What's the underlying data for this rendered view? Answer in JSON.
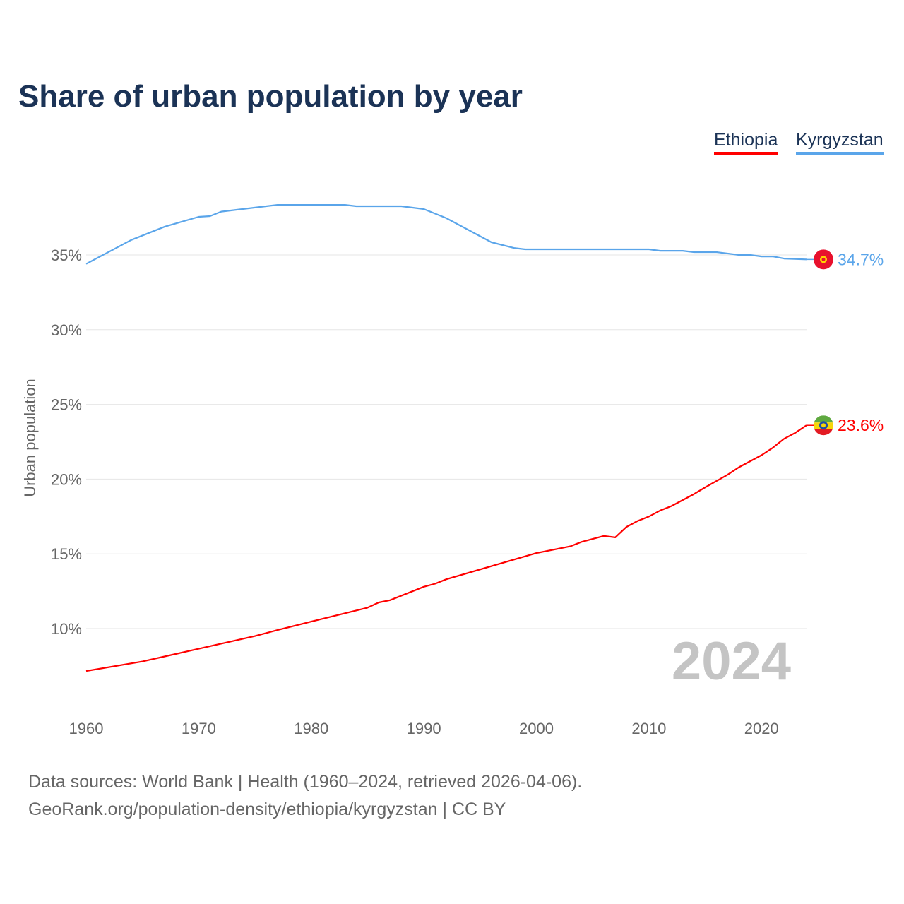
{
  "chart_data": {
    "type": "line",
    "title": "Share of urban population by year",
    "ylabel": "Urban population",
    "xlabel": "",
    "xlim": [
      1960,
      2024
    ],
    "ylim": [
      6,
      39
    ],
    "x_ticks": [
      1960,
      1970,
      1980,
      1990,
      2000,
      2010,
      2020
    ],
    "x_tick_labels": [
      "1960",
      "1970",
      "1980",
      "1990",
      "2000",
      "2010",
      "2020"
    ],
    "y_ticks": [
      10,
      15,
      20,
      25,
      30,
      35
    ],
    "y_tick_labels": [
      "10%",
      "15%",
      "20%",
      "25%",
      "30%",
      "35%"
    ],
    "grid": true,
    "legend": "top-right",
    "year_label": "2024",
    "series": [
      {
        "name": "Ethiopia",
        "color": "#ff0000",
        "end_label": "23.6%",
        "flag": "ethiopia-flag",
        "points": [
          [
            1960,
            7.16
          ],
          [
            1965,
            7.8
          ],
          [
            1970,
            8.65
          ],
          [
            1975,
            9.5
          ],
          [
            1977,
            9.9
          ],
          [
            1980,
            10.47
          ],
          [
            1985,
            11.4
          ],
          [
            1986,
            11.75
          ],
          [
            1987,
            11.9
          ],
          [
            1990,
            12.8
          ],
          [
            1991,
            13.0
          ],
          [
            1992,
            13.3
          ],
          [
            2000,
            15.05
          ],
          [
            2003,
            15.5
          ],
          [
            2004,
            15.8
          ],
          [
            2006,
            16.2
          ],
          [
            2007,
            16.1
          ],
          [
            2008,
            16.8
          ],
          [
            2009,
            17.2
          ],
          [
            2010,
            17.5
          ],
          [
            2011,
            17.9
          ],
          [
            2012,
            18.2
          ],
          [
            2014,
            19.0
          ],
          [
            2015,
            19.45
          ],
          [
            2017,
            20.3
          ],
          [
            2018,
            20.8
          ],
          [
            2020,
            21.6
          ],
          [
            2021,
            22.1
          ],
          [
            2022,
            22.7
          ],
          [
            2023,
            23.1
          ],
          [
            2024,
            23.6
          ]
        ]
      },
      {
        "name": "Kyrgyzstan",
        "color": "#5aa5ea",
        "end_label": "34.7%",
        "flag": "kyrgyzstan-flag",
        "points": [
          [
            1960,
            34.4
          ],
          [
            1964,
            36.0
          ],
          [
            1967,
            36.9
          ],
          [
            1970,
            37.55
          ],
          [
            1971,
            37.6
          ],
          [
            1972,
            37.9
          ],
          [
            1977,
            38.35
          ],
          [
            1983,
            38.35
          ],
          [
            1984,
            38.26
          ],
          [
            1988,
            38.26
          ],
          [
            1990,
            38.07
          ],
          [
            1992,
            37.46
          ],
          [
            1996,
            35.85
          ],
          [
            1998,
            35.47
          ],
          [
            1999,
            35.38
          ],
          [
            2010,
            35.38
          ],
          [
            2011,
            35.28
          ],
          [
            2013,
            35.28
          ],
          [
            2014,
            35.19
          ],
          [
            2016,
            35.19
          ],
          [
            2018,
            35.0
          ],
          [
            2019,
            35.0
          ],
          [
            2020,
            34.9
          ],
          [
            2021,
            34.9
          ],
          [
            2022,
            34.76
          ],
          [
            2024,
            34.7
          ]
        ]
      }
    ]
  },
  "source": {
    "line1": "Data sources: World Bank | Health (1960–2024, retrieved 2026-04-06).",
    "line2": "GeoRank.org/population-density/ethiopia/kyrgyzstan | CC BY"
  }
}
